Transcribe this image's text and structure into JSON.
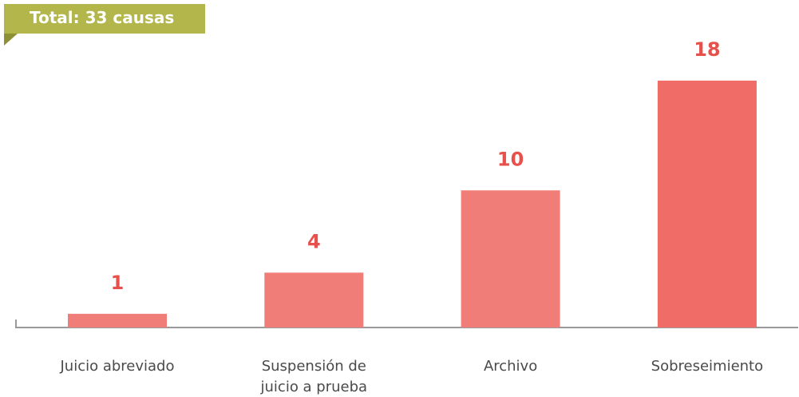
{
  "chart_data": {
    "type": "bar",
    "title": "Total: 33 causas",
    "categories": [
      "Juicio abreviado",
      "Suspensión de juicio a prueba",
      "Archivo",
      "Sobreseimiento"
    ],
    "values": [
      1,
      4,
      10,
      18
    ],
    "colors": [
      "#f17d78",
      "#f17d78",
      "#f17d78",
      "#ef6c67"
    ]
  }
}
